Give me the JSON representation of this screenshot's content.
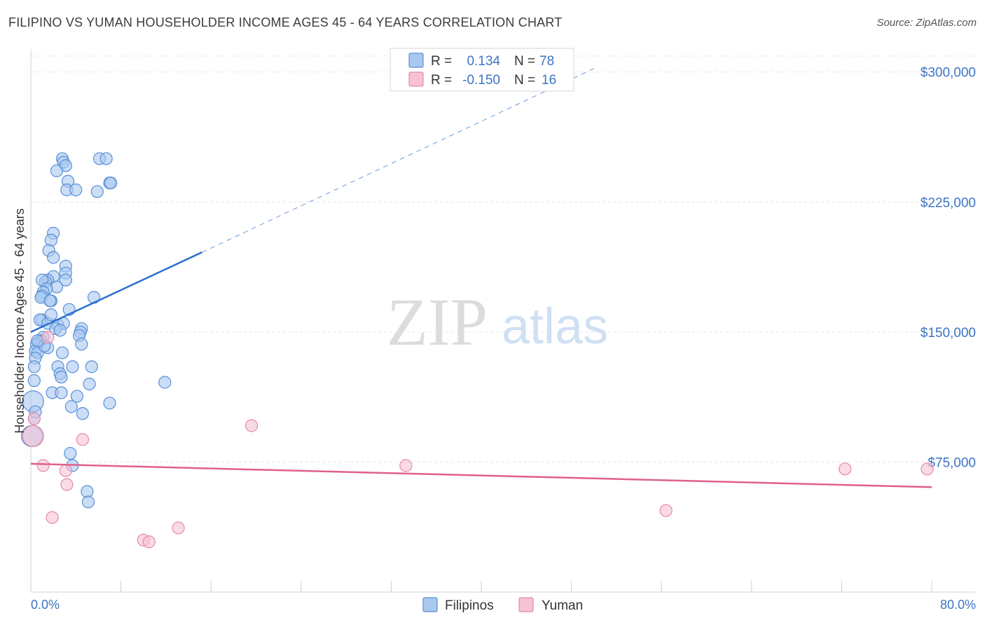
{
  "title": "FILIPINO VS YUMAN HOUSEHOLDER INCOME AGES 45 - 64 YEARS CORRELATION CHART",
  "source": "Source: ZipAtlas.com",
  "watermark": {
    "zip": "ZIP",
    "atlas": "atlas"
  },
  "colors": {
    "filipino_fill": "#a9c8f0",
    "filipino_stroke": "#5a8fd6",
    "filipino_line": "#2b6fd0",
    "yuman_fill": "#f7c2d3",
    "yuman_stroke": "#e58aa8",
    "yuman_line": "#e0608a",
    "tick_text": "#3d74c4",
    "grid": "#e6e6e6"
  },
  "chart_data": {
    "type": "scatter",
    "title": "FILIPINO VS YUMAN HOUSEHOLDER INCOME AGES 45 - 64 YEARS CORRELATION CHART",
    "xlabel": "",
    "ylabel": "Householder Income Ages 45 - 64 years",
    "xlim": [
      0,
      80
    ],
    "ylim": [
      0,
      310000
    ],
    "x_tick_labels": [
      "0.0%",
      "80.0%"
    ],
    "y_ticks": [
      75000,
      150000,
      225000,
      300000
    ],
    "y_tick_labels": [
      "$75,000",
      "$150,000",
      "$225,000",
      "$300,000"
    ],
    "legend": {
      "placement": "top-center",
      "entries": [
        {
          "r_label": "R =",
          "r_value": "0.134",
          "n_label": "N =",
          "n_value": "78"
        },
        {
          "r_label": "R =",
          "r_value": "-0.150",
          "n_label": "N =",
          "n_value": "16"
        }
      ]
    },
    "bottom_legend": [
      "Filipinos",
      "Yuman"
    ],
    "series": [
      {
        "name": "Filipinos",
        "points": [
          [
            2.8,
            250000
          ],
          [
            2.9,
            248000
          ],
          [
            3.1,
            246000
          ],
          [
            2.3,
            243000
          ],
          [
            3.3,
            237000
          ],
          [
            3.2,
            232000
          ],
          [
            4.0,
            232000
          ],
          [
            6.1,
            250000
          ],
          [
            6.7,
            250000
          ],
          [
            7.0,
            236000
          ],
          [
            7.1,
            236000
          ],
          [
            5.9,
            231000
          ],
          [
            2.0,
            207000
          ],
          [
            1.8,
            203000
          ],
          [
            1.6,
            197000
          ],
          [
            2.0,
            193000
          ],
          [
            3.1,
            188000
          ],
          [
            3.1,
            184000
          ],
          [
            3.1,
            180000
          ],
          [
            2.0,
            182000
          ],
          [
            1.5,
            180000
          ],
          [
            1.3,
            179000
          ],
          [
            1.0,
            180000
          ],
          [
            2.3,
            176000
          ],
          [
            1.4,
            175000
          ],
          [
            1.1,
            173000
          ],
          [
            1.0,
            171000
          ],
          [
            0.9,
            170000
          ],
          [
            5.6,
            170000
          ],
          [
            1.8,
            168000
          ],
          [
            1.7,
            168000
          ],
          [
            3.4,
            163000
          ],
          [
            1.0,
            157000
          ],
          [
            0.8,
            157000
          ],
          [
            1.5,
            155000
          ],
          [
            2.4,
            154000
          ],
          [
            2.9,
            155000
          ],
          [
            2.2,
            152000
          ],
          [
            2.6,
            151000
          ],
          [
            4.5,
            152000
          ],
          [
            4.4,
            150000
          ],
          [
            4.3,
            148000
          ],
          [
            1.1,
            147000
          ],
          [
            0.9,
            145000
          ],
          [
            0.7,
            144000
          ],
          [
            0.5,
            143000
          ],
          [
            1.5,
            141000
          ],
          [
            4.5,
            143000
          ],
          [
            0.4,
            139000
          ],
          [
            0.6,
            138000
          ],
          [
            2.8,
            138000
          ],
          [
            0.4,
            135000
          ],
          [
            0.3,
            130000
          ],
          [
            2.4,
            130000
          ],
          [
            3.7,
            130000
          ],
          [
            5.4,
            130000
          ],
          [
            2.6,
            126000
          ],
          [
            2.7,
            124000
          ],
          [
            0.3,
            122000
          ],
          [
            5.2,
            120000
          ],
          [
            11.9,
            121000
          ],
          [
            1.9,
            115000
          ],
          [
            2.7,
            115000
          ],
          [
            4.1,
            113000
          ],
          [
            0.2,
            110000
          ],
          [
            7.0,
            109000
          ],
          [
            3.6,
            107000
          ],
          [
            4.6,
            103000
          ],
          [
            0.3,
            100000
          ],
          [
            0.1,
            90000
          ],
          [
            3.5,
            80000
          ],
          [
            3.7,
            73000
          ],
          [
            5.0,
            58000
          ],
          [
            5.1,
            52000
          ],
          [
            0.4,
            104000
          ],
          [
            1.2,
            142000
          ],
          [
            0.6,
            145000
          ],
          [
            1.8,
            160000
          ]
        ]
      },
      {
        "name": "Yuman",
        "points": [
          [
            0.3,
            100000
          ],
          [
            0.2,
            90000
          ],
          [
            1.5,
            147000
          ],
          [
            4.6,
            88000
          ],
          [
            1.1,
            73000
          ],
          [
            3.1,
            70000
          ],
          [
            3.2,
            62000
          ],
          [
            1.9,
            43000
          ],
          [
            10.0,
            30000
          ],
          [
            10.5,
            29000
          ],
          [
            13.1,
            37000
          ],
          [
            19.6,
            96000
          ],
          [
            33.3,
            73000
          ],
          [
            56.4,
            47000
          ],
          [
            72.3,
            71000
          ],
          [
            79.6,
            71000
          ]
        ]
      }
    ],
    "trend_lines": [
      {
        "series": "Filipinos",
        "solid": [
          [
            0,
            150000
          ],
          [
            15.2,
            196000
          ]
        ],
        "dashed": [
          [
            15.2,
            196000
          ],
          [
            50.0,
            302000
          ]
        ]
      },
      {
        "series": "Yuman",
        "solid": [
          [
            0,
            74000
          ],
          [
            80,
            60500
          ]
        ]
      }
    ]
  }
}
